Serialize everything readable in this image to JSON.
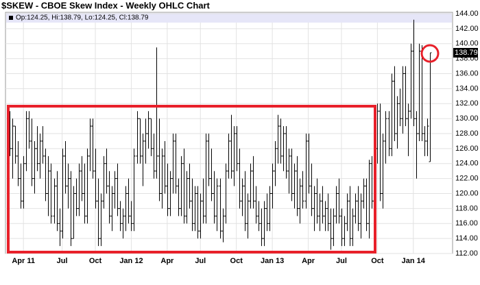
{
  "chart_data": {
    "type": "ohlc",
    "title": "$SKEW - CBOE Skew Index - Weekly OHLC Chart",
    "legend_text": "Op:124.25, Hi:138.79, Lo:124.25, Cl:138.79",
    "last_price": 138.79,
    "color": "#000000",
    "grid": true,
    "ylim": [
      112,
      144
    ],
    "yticks": [
      {
        "value": 112,
        "label": "112.00"
      },
      {
        "value": 114,
        "label": "114.00"
      },
      {
        "value": 116,
        "label": "116.00"
      },
      {
        "value": 118,
        "label": "118.00"
      },
      {
        "value": 120,
        "label": "120.00"
      },
      {
        "value": 122,
        "label": "122.00"
      },
      {
        "value": 124,
        "label": "124.00"
      },
      {
        "value": 126,
        "label": "126.00"
      },
      {
        "value": 128,
        "label": "128.00"
      },
      {
        "value": 130,
        "label": "130.00"
      },
      {
        "value": 132,
        "label": "132.00"
      },
      {
        "value": 134,
        "label": "134.00"
      },
      {
        "value": 136,
        "label": "136.00"
      },
      {
        "value": 138,
        "label": "138.00"
      },
      {
        "value": 140,
        "label": "140.00"
      },
      {
        "value": 142,
        "label": "142.00"
      },
      {
        "value": 144,
        "label": "144.00"
      }
    ],
    "xticks": [
      {
        "value": 5,
        "label": "Apr 11"
      },
      {
        "value": 19,
        "label": "Jul"
      },
      {
        "value": 31,
        "label": "Oct"
      },
      {
        "value": 44,
        "label": "Jan 12"
      },
      {
        "value": 57,
        "label": "Apr"
      },
      {
        "value": 69,
        "label": "Jul"
      },
      {
        "value": 82,
        "label": "Oct"
      },
      {
        "value": 95,
        "label": "Jan 13"
      },
      {
        "value": 108,
        "label": "Apr"
      },
      {
        "value": 120,
        "label": "Jul"
      },
      {
        "value": 133,
        "label": "Oct"
      },
      {
        "value": 146,
        "label": "Jan 14"
      }
    ],
    "bars": [
      [
        128,
        131,
        125,
        126
      ],
      [
        126,
        130,
        122,
        129
      ],
      [
        129,
        129,
        124,
        125
      ],
      [
        125,
        127,
        121,
        122
      ],
      [
        122,
        124,
        118,
        119
      ],
      [
        119,
        125,
        118,
        124
      ],
      [
        124,
        131,
        123,
        130
      ],
      [
        130,
        131,
        126,
        127
      ],
      [
        127,
        130,
        121,
        122
      ],
      [
        122,
        127,
        120,
        126
      ],
      [
        126,
        129,
        123,
        124
      ],
      [
        124,
        128,
        122,
        127
      ],
      [
        127,
        129,
        124,
        125
      ],
      [
        125,
        126,
        119,
        120
      ],
      [
        120,
        125,
        117,
        123
      ],
      [
        123,
        124,
        116,
        117
      ],
      [
        117,
        122,
        116,
        121
      ],
      [
        121,
        123,
        115,
        116
      ],
      [
        116,
        118,
        113,
        115
      ],
      [
        115,
        126,
        114,
        125
      ],
      [
        125,
        127,
        120,
        121
      ],
      [
        121,
        124,
        118,
        122
      ],
      [
        122,
        123,
        113,
        114
      ],
      [
        114,
        121,
        114,
        120
      ],
      [
        120,
        122,
        117,
        118
      ],
      [
        118,
        124,
        117,
        123
      ],
      [
        123,
        125,
        119,
        120
      ],
      [
        120,
        124,
        116,
        117
      ],
      [
        117,
        126,
        116,
        125
      ],
      [
        125,
        130,
        123,
        129
      ],
      [
        129,
        130,
        122,
        123
      ],
      [
        123,
        126,
        118,
        119
      ],
      [
        119,
        122,
        113,
        114
      ],
      [
        114,
        120,
        113,
        119
      ],
      [
        119,
        125,
        118,
        124
      ],
      [
        124,
        126,
        120,
        121
      ],
      [
        121,
        123,
        116,
        117
      ],
      [
        117,
        121,
        115,
        120
      ],
      [
        120,
        123,
        118,
        122
      ],
      [
        122,
        124,
        117,
        118
      ],
      [
        118,
        119,
        115,
        116
      ],
      [
        116,
        118,
        114,
        117
      ],
      [
        117,
        121,
        115,
        120
      ],
      [
        120,
        122,
        116,
        117
      ],
      [
        117,
        119,
        115,
        116
      ],
      [
        116,
        126,
        115,
        125
      ],
      [
        125,
        131,
        124,
        130
      ],
      [
        130,
        130,
        124,
        125
      ],
      [
        125,
        128,
        121,
        127
      ],
      [
        127,
        130,
        124,
        128
      ],
      [
        128,
        131,
        126,
        130
      ],
      [
        130,
        130,
        125,
        126
      ],
      [
        126,
        128,
        122,
        123
      ],
      [
        123,
        139.5,
        122,
        125
      ],
      [
        125,
        130,
        119,
        120
      ],
      [
        120,
        126,
        118,
        125
      ],
      [
        125,
        127,
        120,
        121
      ],
      [
        121,
        124,
        117,
        118
      ],
      [
        118,
        123,
        117,
        122
      ],
      [
        122,
        128,
        120,
        127
      ],
      [
        127,
        128,
        120,
        121
      ],
      [
        121,
        122,
        117,
        118
      ],
      [
        118,
        125,
        117,
        124
      ],
      [
        124,
        126,
        116,
        117
      ],
      [
        117,
        123,
        116,
        122
      ],
      [
        122,
        124,
        118,
        119
      ],
      [
        119,
        122,
        115,
        116
      ],
      [
        116,
        121,
        115,
        120
      ],
      [
        120,
        121,
        114,
        115
      ],
      [
        115,
        120,
        114,
        119
      ],
      [
        119,
        122,
        116,
        117
      ],
      [
        117,
        128,
        116,
        127
      ],
      [
        127,
        128,
        121,
        122
      ],
      [
        122,
        126,
        119,
        120
      ],
      [
        120,
        123,
        116,
        117
      ],
      [
        117,
        122,
        115,
        121
      ],
      [
        121,
        122,
        114,
        115
      ],
      [
        115,
        118,
        113.5,
        117
      ],
      [
        117,
        124,
        116,
        123
      ],
      [
        123,
        128,
        122,
        127
      ],
      [
        127,
        130.5,
        122,
        123
      ],
      [
        123,
        129,
        121,
        128
      ],
      [
        128,
        129,
        123,
        124
      ],
      [
        124,
        126,
        118,
        119
      ],
      [
        119,
        122,
        117,
        121
      ],
      [
        121,
        123,
        115,
        116
      ],
      [
        116,
        120,
        114,
        119
      ],
      [
        119,
        124,
        118,
        123
      ],
      [
        123,
        125,
        118,
        119
      ],
      [
        119,
        121,
        116,
        117
      ],
      [
        117,
        119,
        115,
        116
      ],
      [
        116,
        118,
        113,
        114
      ],
      [
        114,
        119,
        113,
        118
      ],
      [
        118,
        120,
        115,
        116
      ],
      [
        116,
        121,
        115,
        120
      ],
      [
        120,
        124,
        118,
        123
      ],
      [
        123,
        127,
        121,
        126
      ],
      [
        126,
        130.5,
        124,
        129
      ],
      [
        129,
        130,
        124,
        125
      ],
      [
        125,
        129,
        123,
        128
      ],
      [
        128,
        129,
        122,
        123
      ],
      [
        123,
        126,
        120,
        125
      ],
      [
        125,
        126,
        119,
        120
      ],
      [
        120,
        124,
        118,
        123
      ],
      [
        123,
        125,
        117,
        118
      ],
      [
        118,
        122,
        116,
        121
      ],
      [
        121,
        123,
        118,
        119
      ],
      [
        119,
        128,
        118,
        127
      ],
      [
        127,
        128,
        120,
        121
      ],
      [
        121,
        124,
        117,
        118
      ],
      [
        118,
        121,
        115,
        120
      ],
      [
        120,
        122,
        116,
        117
      ],
      [
        117,
        120,
        115,
        119
      ],
      [
        119,
        121,
        116,
        117
      ],
      [
        117,
        119,
        115,
        118
      ],
      [
        118,
        120,
        115,
        116
      ],
      [
        116,
        118,
        112.5,
        114
      ],
      [
        114,
        118,
        113,
        117
      ],
      [
        117,
        121,
        116,
        120
      ],
      [
        120,
        122,
        116,
        117
      ],
      [
        117,
        118,
        113,
        114
      ],
      [
        114,
        117,
        113,
        116
      ],
      [
        116,
        120,
        115,
        119
      ],
      [
        119,
        121,
        113,
        114
      ],
      [
        114,
        118,
        113,
        117
      ],
      [
        117,
        120,
        116,
        119
      ],
      [
        119,
        121,
        115,
        116
      ],
      [
        116,
        120,
        114,
        119
      ],
      [
        119,
        122,
        118,
        121
      ],
      [
        121,
        122,
        115,
        116
      ],
      [
        116,
        124.5,
        114,
        124
      ],
      [
        124,
        125,
        118,
        119
      ],
      [
        119,
        127,
        118,
        126
      ],
      [
        126,
        132,
        124,
        131
      ],
      [
        131,
        132,
        119,
        120
      ],
      [
        120,
        128,
        118,
        127
      ],
      [
        127,
        131,
        124,
        130
      ],
      [
        130,
        131,
        125,
        126
      ],
      [
        126,
        136,
        125,
        135
      ],
      [
        135,
        137,
        127,
        128
      ],
      [
        128,
        133,
        126,
        132
      ],
      [
        132,
        134,
        129,
        130
      ],
      [
        130,
        137,
        128,
        136
      ],
      [
        136,
        137,
        129,
        130
      ],
      [
        130,
        132,
        125,
        131
      ],
      [
        131,
        140,
        130,
        139
      ],
      [
        139,
        143.2,
        129,
        130
      ],
      [
        130,
        131,
        122,
        128
      ],
      [
        128,
        140,
        127,
        139
      ],
      [
        139,
        139.8,
        127,
        128
      ],
      [
        128,
        129,
        125,
        127
      ],
      [
        127,
        130,
        125,
        129
      ],
      [
        124.25,
        138.79,
        124.25,
        138.79
      ]
    ]
  }
}
